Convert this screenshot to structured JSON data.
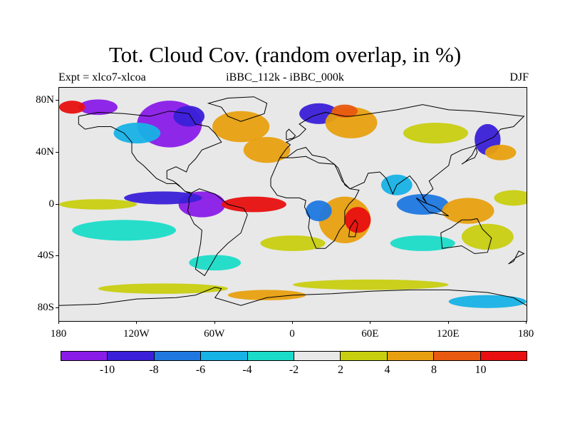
{
  "title": "Tot. Cloud Cov. (random overlap, in %)",
  "subtitle_left": "Expt = xlco7-xlcoa",
  "subtitle_center": "iBBC_112k - iBBC_000k",
  "subtitle_right": "DJF",
  "lat_ticks": [
    {
      "label": "80N",
      "lat": 80
    },
    {
      "label": "40N",
      "lat": 40
    },
    {
      "label": "0",
      "lat": 0
    },
    {
      "label": "40S",
      "lat": -40
    },
    {
      "label": "80S",
      "lat": -80
    }
  ],
  "lon_ticks": [
    {
      "label": "180",
      "lon": -180
    },
    {
      "label": "120W",
      "lon": -120
    },
    {
      "label": "60W",
      "lon": -60
    },
    {
      "label": "0",
      "lon": 0
    },
    {
      "label": "60E",
      "lon": 60
    },
    {
      "label": "120E",
      "lon": 120
    },
    {
      "label": "180",
      "lon": 180
    }
  ],
  "colorbar": {
    "colors": [
      "#8a1ce8",
      "#3a20d8",
      "#1f78e0",
      "#17b2e6",
      "#1bdcc8",
      "#e8e8e8",
      "#c8cf10",
      "#e8a010",
      "#e85a10",
      "#e81010"
    ],
    "labels": [
      {
        "text": "-10",
        "index": 1
      },
      {
        "text": "-8",
        "index": 2
      },
      {
        "text": "-6",
        "index": 3
      },
      {
        "text": "-4",
        "index": 4
      },
      {
        "text": "-2",
        "index": 5
      },
      {
        "text": "2",
        "index": 6
      },
      {
        "text": "4",
        "index": 7
      },
      {
        "text": "8",
        "index": 8
      },
      {
        "text": "10",
        "index": 9
      }
    ]
  },
  "anomalies": [
    {
      "lon": -95,
      "lat": 62,
      "rx": 25,
      "ry": 18,
      "color": "#8a1ce8"
    },
    {
      "lon": -80,
      "lat": 68,
      "rx": 12,
      "ry": 8,
      "color": "#3a20d8"
    },
    {
      "lon": -150,
      "lat": 75,
      "rx": 15,
      "ry": 6,
      "color": "#8a1ce8"
    },
    {
      "lon": -170,
      "lat": 75,
      "rx": 10,
      "ry": 5,
      "color": "#e81010"
    },
    {
      "lon": -120,
      "lat": 55,
      "rx": 18,
      "ry": 8,
      "color": "#17b2e6"
    },
    {
      "lon": -40,
      "lat": 60,
      "rx": 22,
      "ry": 12,
      "color": "#e8a010"
    },
    {
      "lon": -20,
      "lat": 42,
      "rx": 18,
      "ry": 10,
      "color": "#e8a010"
    },
    {
      "lon": 20,
      "lat": 70,
      "rx": 15,
      "ry": 8,
      "color": "#3a20d8"
    },
    {
      "lon": 45,
      "lat": 63,
      "rx": 20,
      "ry": 12,
      "color": "#e8a010"
    },
    {
      "lon": 40,
      "lat": 72,
      "rx": 10,
      "ry": 5,
      "color": "#e85a10"
    },
    {
      "lon": 110,
      "lat": 55,
      "rx": 25,
      "ry": 8,
      "color": "#c8cf10"
    },
    {
      "lon": 150,
      "lat": 50,
      "rx": 10,
      "ry": 12,
      "color": "#3a20d8"
    },
    {
      "lon": 160,
      "lat": 40,
      "rx": 12,
      "ry": 6,
      "color": "#e8a010"
    },
    {
      "lon": -70,
      "lat": 0,
      "rx": 18,
      "ry": 10,
      "color": "#8a1ce8"
    },
    {
      "lon": -100,
      "lat": 5,
      "rx": 30,
      "ry": 5,
      "color": "#3a20d8"
    },
    {
      "lon": -30,
      "lat": 0,
      "rx": 25,
      "ry": 6,
      "color": "#e81010"
    },
    {
      "lon": -150,
      "lat": 0,
      "rx": 30,
      "ry": 4,
      "color": "#c8cf10"
    },
    {
      "lon": -130,
      "lat": -20,
      "rx": 40,
      "ry": 8,
      "color": "#1bdcc8"
    },
    {
      "lon": 40,
      "lat": -12,
      "rx": 20,
      "ry": 18,
      "color": "#e8a010"
    },
    {
      "lon": 50,
      "lat": -12,
      "rx": 10,
      "ry": 10,
      "color": "#e81010"
    },
    {
      "lon": 20,
      "lat": -5,
      "rx": 10,
      "ry": 8,
      "color": "#1f78e0"
    },
    {
      "lon": 100,
      "lat": 0,
      "rx": 20,
      "ry": 8,
      "color": "#1f78e0"
    },
    {
      "lon": 80,
      "lat": 15,
      "rx": 12,
      "ry": 8,
      "color": "#17b2e6"
    },
    {
      "lon": 135,
      "lat": -5,
      "rx": 20,
      "ry": 10,
      "color": "#e8a010"
    },
    {
      "lon": 150,
      "lat": -25,
      "rx": 20,
      "ry": 10,
      "color": "#c8cf10"
    },
    {
      "lon": 170,
      "lat": 5,
      "rx": 15,
      "ry": 6,
      "color": "#c8cf10"
    },
    {
      "lon": -60,
      "lat": -45,
      "rx": 20,
      "ry": 6,
      "color": "#1bdcc8"
    },
    {
      "lon": 0,
      "lat": -30,
      "rx": 25,
      "ry": 6,
      "color": "#c8cf10"
    },
    {
      "lon": 100,
      "lat": -30,
      "rx": 25,
      "ry": 6,
      "color": "#1bdcc8"
    },
    {
      "lon": -100,
      "lat": -65,
      "rx": 50,
      "ry": 4,
      "color": "#c8cf10"
    },
    {
      "lon": 60,
      "lat": -62,
      "rx": 60,
      "ry": 4,
      "color": "#c8cf10"
    },
    {
      "lon": -20,
      "lat": -70,
      "rx": 30,
      "ry": 4,
      "color": "#e8a010"
    },
    {
      "lon": 150,
      "lat": -75,
      "rx": 30,
      "ry": 5,
      "color": "#17b2e6"
    }
  ],
  "coastlines": [
    [
      [
        -165,
        68
      ],
      [
        -150,
        71
      ],
      [
        -130,
        70
      ],
      [
        -110,
        68
      ],
      [
        -95,
        72
      ],
      [
        -80,
        70
      ],
      [
        -75,
        62
      ],
      [
        -65,
        60
      ],
      [
        -60,
        55
      ],
      [
        -55,
        48
      ],
      [
        -65,
        44
      ],
      [
        -70,
        42
      ],
      [
        -75,
        35
      ],
      [
        -80,
        30
      ],
      [
        -82,
        25
      ],
      [
        -90,
        29
      ],
      [
        -97,
        26
      ],
      [
        -97,
        20
      ],
      [
        -92,
        18
      ],
      [
        -88,
        15
      ],
      [
        -83,
        10
      ],
      [
        -78,
        8
      ],
      [
        -80,
        5
      ],
      [
        -80,
        0
      ],
      [
        -81,
        -5
      ],
      [
        -76,
        -15
      ],
      [
        -70,
        -20
      ],
      [
        -71,
        -30
      ],
      [
        -73,
        -40
      ],
      [
        -75,
        -50
      ],
      [
        -68,
        -55
      ],
      [
        -65,
        -50
      ],
      [
        -58,
        -38
      ],
      [
        -50,
        -30
      ],
      [
        -40,
        -22
      ],
      [
        -35,
        -8
      ],
      [
        -38,
        -3
      ],
      [
        -50,
        0
      ],
      [
        -60,
        8
      ],
      [
        -72,
        12
      ],
      [
        -78,
        9
      ],
      [
        -83,
        10
      ],
      [
        -86,
        13
      ],
      [
        -90,
        16
      ],
      [
        -97,
        16
      ],
      [
        -105,
        20
      ],
      [
        -110,
        25
      ],
      [
        -115,
        30
      ],
      [
        -120,
        34
      ],
      [
        -124,
        40
      ],
      [
        -124,
        48
      ],
      [
        -130,
        55
      ],
      [
        -140,
        60
      ],
      [
        -150,
        60
      ],
      [
        -160,
        58
      ],
      [
        -165,
        62
      ],
      [
        -165,
        68
      ]
    ],
    [
      [
        -50,
        82
      ],
      [
        -30,
        83
      ],
      [
        -20,
        78
      ],
      [
        -22,
        70
      ],
      [
        -40,
        64
      ],
      [
        -50,
        68
      ],
      [
        -55,
        75
      ],
      [
        -65,
        78
      ],
      [
        -50,
        82
      ]
    ],
    [
      [
        -10,
        36
      ],
      [
        -5,
        43
      ],
      [
        -2,
        46
      ],
      [
        -5,
        48
      ],
      [
        5,
        53
      ],
      [
        10,
        58
      ],
      [
        5,
        62
      ],
      [
        15,
        68
      ],
      [
        25,
        71
      ],
      [
        40,
        68
      ],
      [
        45,
        68
      ],
      [
        60,
        70
      ],
      [
        80,
        73
      ],
      [
        100,
        77
      ],
      [
        120,
        73
      ],
      [
        140,
        72
      ],
      [
        160,
        70
      ],
      [
        178,
        68
      ],
      [
        170,
        60
      ],
      [
        160,
        58
      ],
      [
        155,
        52
      ],
      [
        140,
        45
      ],
      [
        130,
        42
      ],
      [
        122,
        38
      ],
      [
        120,
        30
      ],
      [
        110,
        22
      ],
      [
        105,
        18
      ],
      [
        108,
        12
      ],
      [
        100,
        5
      ],
      [
        103,
        1
      ],
      [
        98,
        10
      ],
      [
        95,
        16
      ],
      [
        90,
        22
      ],
      [
        80,
        15
      ],
      [
        77,
        8
      ],
      [
        72,
        20
      ],
      [
        67,
        25
      ],
      [
        58,
        24
      ],
      [
        55,
        17
      ],
      [
        44,
        12
      ],
      [
        40,
        15
      ],
      [
        35,
        28
      ],
      [
        32,
        31
      ],
      [
        25,
        36
      ],
      [
        15,
        38
      ],
      [
        10,
        44
      ],
      [
        3,
        42
      ],
      [
        -5,
        36
      ],
      [
        -10,
        36
      ]
    ],
    [
      [
        -10,
        36
      ],
      [
        -17,
        20
      ],
      [
        -17,
        14
      ],
      [
        -12,
        7
      ],
      [
        -5,
        5
      ],
      [
        5,
        5
      ],
      [
        10,
        3
      ],
      [
        9,
        -2
      ],
      [
        13,
        -10
      ],
      [
        12,
        -18
      ],
      [
        15,
        -27
      ],
      [
        18,
        -34
      ],
      [
        25,
        -34
      ],
      [
        32,
        -28
      ],
      [
        36,
        -20
      ],
      [
        40,
        -15
      ],
      [
        40,
        -5
      ],
      [
        43,
        0
      ],
      [
        48,
        5
      ],
      [
        51,
        11
      ],
      [
        44,
        12
      ],
      [
        38,
        18
      ],
      [
        34,
        27
      ],
      [
        32,
        31
      ],
      [
        20,
        32
      ],
      [
        10,
        37
      ],
      [
        0,
        36
      ],
      [
        -10,
        36
      ]
    ],
    [
      [
        43,
        -25
      ],
      [
        48,
        -25
      ],
      [
        50,
        -15
      ],
      [
        48,
        -12
      ],
      [
        44,
        -18
      ],
      [
        43,
        -25
      ]
    ],
    [
      [
        114,
        -22
      ],
      [
        122,
        -18
      ],
      [
        130,
        -12
      ],
      [
        137,
        -12
      ],
      [
        142,
        -11
      ],
      [
        146,
        -19
      ],
      [
        153,
        -26
      ],
      [
        150,
        -37
      ],
      [
        140,
        -38
      ],
      [
        130,
        -32
      ],
      [
        115,
        -34
      ],
      [
        114,
        -22
      ]
    ],
    [
      [
        166,
        -46
      ],
      [
        172,
        -41
      ],
      [
        178,
        -38
      ],
      [
        174,
        -36
      ],
      [
        170,
        -44
      ],
      [
        166,
        -46
      ]
    ],
    [
      [
        95,
        5
      ],
      [
        105,
        -6
      ],
      [
        115,
        -8
      ],
      [
        120,
        -9
      ],
      [
        110,
        -2
      ],
      [
        100,
        2
      ],
      [
        95,
        5
      ]
    ],
    [
      [
        130,
        31
      ],
      [
        135,
        34
      ],
      [
        140,
        36
      ],
      [
        142,
        40
      ],
      [
        141,
        44
      ],
      [
        138,
        38
      ],
      [
        133,
        33
      ],
      [
        130,
        31
      ]
    ],
    [
      [
        -180,
        -78
      ],
      [
        -150,
        -77
      ],
      [
        -120,
        -73
      ],
      [
        -90,
        -72
      ],
      [
        -75,
        -70
      ],
      [
        -60,
        -64
      ],
      [
        -55,
        -65
      ],
      [
        -60,
        -72
      ],
      [
        -40,
        -78
      ],
      [
        -20,
        -72
      ],
      [
        0,
        -70
      ],
      [
        30,
        -69
      ],
      [
        60,
        -67
      ],
      [
        90,
        -66
      ],
      [
        120,
        -66
      ],
      [
        150,
        -68
      ],
      [
        170,
        -72
      ],
      [
        180,
        -78
      ]
    ],
    [
      [
        -5,
        50
      ],
      [
        0,
        51
      ],
      [
        2,
        53
      ],
      [
        -3,
        58
      ],
      [
        -5,
        56
      ],
      [
        -5,
        50
      ]
    ]
  ]
}
